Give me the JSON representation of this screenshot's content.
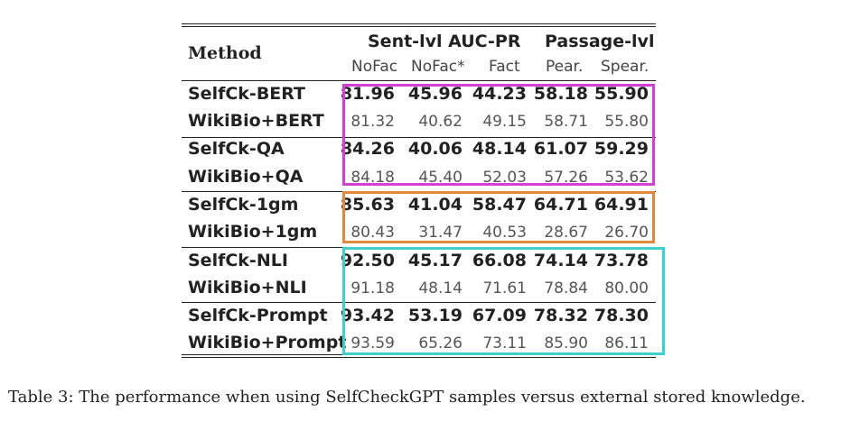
{
  "table": {
    "method_header": "Method",
    "group_headers": [
      "Sent-lvl AUC-PR",
      "Passage-lvl"
    ],
    "sub_headers": [
      "NoFac",
      "NoFac*",
      "Fact",
      "Pear.",
      "Spear."
    ],
    "rows": [
      {
        "method": "SelfCk-BERT",
        "values": [
          "81.96",
          "45.96",
          "44.23",
          "58.18",
          "55.90"
        ],
        "bold": true
      },
      {
        "method": "WikiBio+BERT",
        "values": [
          "81.32",
          "40.62",
          "49.15",
          "58.71",
          "55.80"
        ],
        "bold": false
      },
      {
        "method": "SelfCk-QA",
        "values": [
          "84.26",
          "40.06",
          "48.14",
          "61.07",
          "59.29"
        ],
        "bold": true
      },
      {
        "method": "WikiBio+QA",
        "values": [
          "84.18",
          "45.40",
          "52.03",
          "57.26",
          "53.62"
        ],
        "bold": false
      },
      {
        "method": "SelfCk-1gm",
        "values": [
          "85.63",
          "41.04",
          "58.47",
          "64.71",
          "64.91"
        ],
        "bold": true
      },
      {
        "method": "WikiBio+1gm",
        "values": [
          "80.43",
          "31.47",
          "40.53",
          "28.67",
          "26.70"
        ],
        "bold": false
      },
      {
        "method": "SelfCk-NLI",
        "values": [
          "92.50",
          "45.17",
          "66.08",
          "74.14",
          "73.78"
        ],
        "bold": true
      },
      {
        "method": "WikiBio+NLI",
        "values": [
          "91.18",
          "48.14",
          "71.61",
          "78.84",
          "80.00"
        ],
        "bold": false
      },
      {
        "method": "SelfCk-Prompt",
        "values": [
          "93.42",
          "53.19",
          "67.09",
          "78.32",
          "78.30"
        ],
        "bold": true
      },
      {
        "method": "WikiBio+Prompt",
        "values": [
          "93.59",
          "65.26",
          "73.11",
          "85.90",
          "86.11"
        ],
        "bold": false
      }
    ]
  },
  "highlight_boxes": [
    {
      "color": "#d63fd6"
    },
    {
      "color": "#e0893a"
    },
    {
      "color": "#3fcfcf"
    }
  ],
  "caption": "Table 3: The performance when using SelfCheckGPT samples versus external stored knowledge."
}
